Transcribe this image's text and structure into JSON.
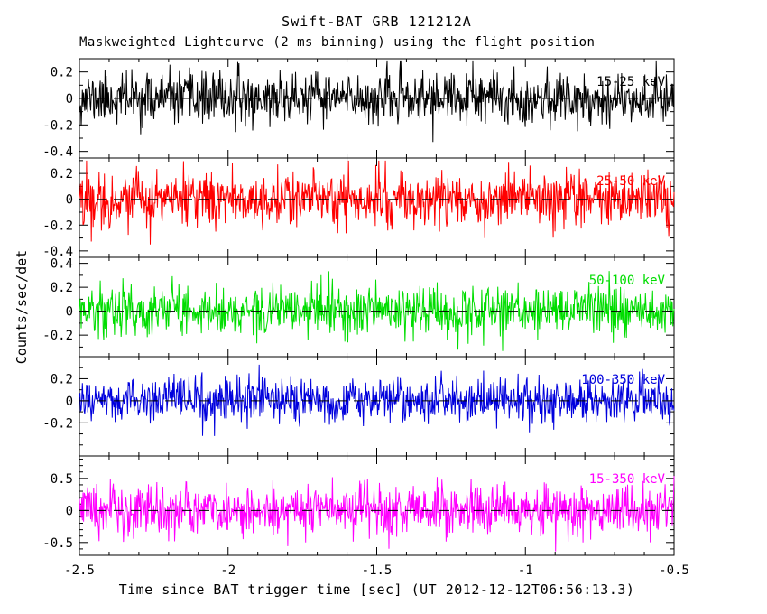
{
  "chart_data": {
    "type": "line",
    "title": "Swift-BAT GRB 121212A",
    "subtitle": "Maskweighted Lightcurve (2 ms binning) using the flight position",
    "xlabel": "Time since BAT trigger time [sec] (UT 2012-12-12T06:56:13.3)",
    "ylabel": "Counts/sec/det",
    "xlim": [
      -2.5,
      -0.5
    ],
    "x_ticks": [
      -2.5,
      -2,
      -1.5,
      -1,
      -0.5
    ],
    "x_tick_labels": [
      "-2.5",
      "-2",
      "-1.5",
      "-1",
      "-0.5"
    ],
    "x_minor_tick_step": 0.1,
    "bin_ms": 2,
    "n_points": 1000,
    "grid": false,
    "zero_line": "dashed",
    "panels": [
      {
        "band": "15-25 keV",
        "color": "#000000",
        "ylim": [
          -0.45,
          0.3
        ],
        "yticks": [
          0.2,
          0,
          -0.2,
          -0.4
        ],
        "noise_sigma": 0.095,
        "seed": 11
      },
      {
        "band": "25-50 keV",
        "color": "#ff0000",
        "ylim": [
          -0.45,
          0.32
        ],
        "yticks": [
          0.2,
          0,
          -0.2,
          -0.4
        ],
        "noise_sigma": 0.105,
        "seed": 22
      },
      {
        "band": "50-100 keV",
        "color": "#00dd00",
        "ylim": [
          -0.38,
          0.45
        ],
        "yticks": [
          0.4,
          0.2,
          0,
          -0.2
        ],
        "noise_sigma": 0.105,
        "seed": 33
      },
      {
        "band": "100-350 keV",
        "color": "#0000dd",
        "ylim": [
          -0.5,
          0.4
        ],
        "yticks": [
          0.2,
          0,
          -0.2
        ],
        "noise_sigma": 0.1,
        "seed": 44
      },
      {
        "band": "15-350 keV",
        "color": "#ff00ff",
        "ylim": [
          -0.7,
          0.85
        ],
        "yticks": [
          0.5,
          0,
          -0.5
        ],
        "noise_sigma": 0.2,
        "seed": 55
      }
    ]
  }
}
